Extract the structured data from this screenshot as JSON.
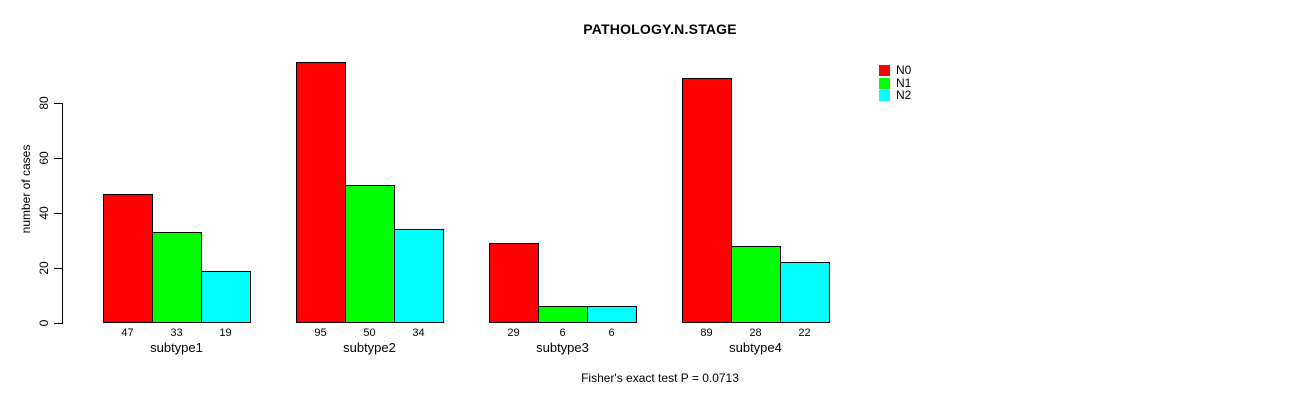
{
  "chart_data": {
    "type": "bar",
    "title": "PATHOLOGY.N.STAGE",
    "ylabel": "number of cases",
    "xlabel": "",
    "footnote": "Fisher's exact test P = 0.0713",
    "categories": [
      "subtype1",
      "subtype2",
      "subtype3",
      "subtype4"
    ],
    "series": [
      {
        "name": "N0",
        "color": "#ff0000",
        "values": [
          47,
          95,
          29,
          89
        ]
      },
      {
        "name": "N1",
        "color": "#00ff00",
        "values": [
          33,
          50,
          6,
          28
        ]
      },
      {
        "name": "N2",
        "color": "#00ffff",
        "values": [
          19,
          34,
          6,
          22
        ]
      }
    ],
    "yticks": [
      0,
      20,
      40,
      60,
      80
    ],
    "ylim": [
      0,
      95
    ],
    "grid": false,
    "legend_position": "top-right",
    "bar_value_labels": true
  }
}
